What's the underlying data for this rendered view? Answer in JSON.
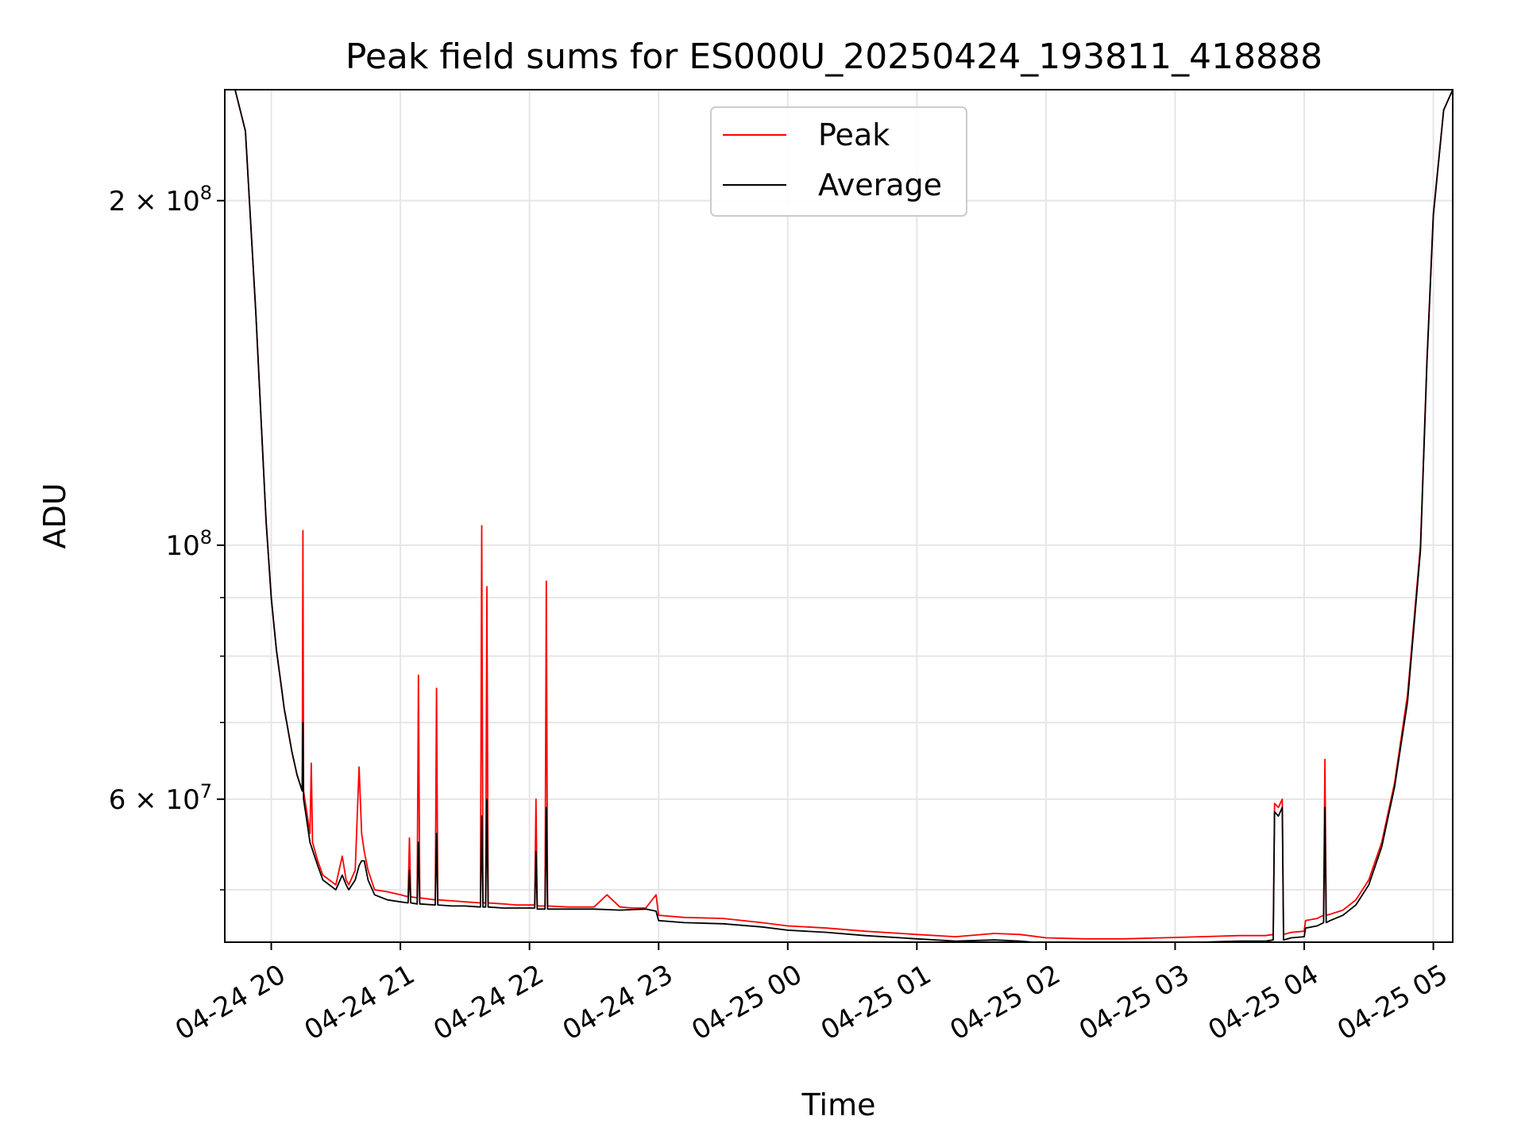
{
  "chart_data": {
    "type": "line",
    "title": "Peak field sums for ES000U_20250424_193811_418888",
    "xlabel": "Time",
    "ylabel": "ADU",
    "yscale": "log",
    "x_units": "hours since 2025-04-24 00:00",
    "xlim": [
      19.64,
      29.15
    ],
    "ylim": [
      45000000,
      250000000
    ],
    "grid": true,
    "legend_position": "top-center",
    "x_ticks": [
      {
        "value": 20,
        "label": "04-24 20"
      },
      {
        "value": 21,
        "label": "04-24 21"
      },
      {
        "value": 22,
        "label": "04-24 22"
      },
      {
        "value": 23,
        "label": "04-24 23"
      },
      {
        "value": 24,
        "label": "04-25 00"
      },
      {
        "value": 25,
        "label": "04-25 01"
      },
      {
        "value": 26,
        "label": "04-25 02"
      },
      {
        "value": 27,
        "label": "04-25 03"
      },
      {
        "value": 28,
        "label": "04-25 04"
      },
      {
        "value": 29,
        "label": "04-25 05"
      }
    ],
    "y_ticks_major": [
      {
        "value": 200000000,
        "base": "2 × 10",
        "exp": "8"
      },
      {
        "value": 100000000,
        "base": "10",
        "exp": "8"
      },
      {
        "value": 60000000,
        "base": "6 × 10",
        "exp": "7"
      }
    ],
    "y_ticks_minor": [
      50000000,
      70000000,
      80000000,
      90000000
    ],
    "series": [
      {
        "name": "Peak",
        "color": "#ff0000",
        "x": [
          19.64,
          19.72,
          19.8,
          19.88,
          19.96,
          20.0,
          20.04,
          20.08,
          20.1,
          20.12,
          20.16,
          20.2,
          20.24,
          20.245,
          20.25,
          20.28,
          20.3,
          20.31,
          20.32,
          20.36,
          20.4,
          20.45,
          20.5,
          20.55,
          20.58,
          20.6,
          20.65,
          20.68,
          20.7,
          20.72,
          20.75,
          20.8,
          20.9,
          21.0,
          21.06,
          21.07,
          21.08,
          21.13,
          21.14,
          21.15,
          21.27,
          21.28,
          21.29,
          21.4,
          21.5,
          21.62,
          21.63,
          21.64,
          21.66,
          21.67,
          21.68,
          21.8,
          21.9,
          22.0,
          22.04,
          22.05,
          22.06,
          22.12,
          22.13,
          22.14,
          22.3,
          22.5,
          22.6,
          22.7,
          22.8,
          22.9,
          22.98,
          23.0,
          23.2,
          23.5,
          23.8,
          24.0,
          24.3,
          24.6,
          25.0,
          25.3,
          25.6,
          25.8,
          26.0,
          26.3,
          26.6,
          26.9,
          27.2,
          27.5,
          27.7,
          27.76,
          27.77,
          27.8,
          27.83,
          27.84,
          27.9,
          28.0,
          28.01,
          28.1,
          28.15,
          28.16,
          28.17,
          28.2,
          28.3,
          28.4,
          28.5,
          28.6,
          28.7,
          28.8,
          28.9,
          28.95,
          29.0,
          29.08,
          29.15
        ],
        "values": [
          250000000,
          250000000,
          230000000,
          160000000,
          105000000,
          90000000,
          81000000,
          75000000,
          72000000,
          70000000,
          66000000,
          63000000,
          61000000,
          103000000,
          61000000,
          58000000,
          56000000,
          64500000,
          55000000,
          53000000,
          51500000,
          51000000,
          50500000,
          53500000,
          51000000,
          50500000,
          52000000,
          64000000,
          56000000,
          54000000,
          52000000,
          50000000,
          49800000,
          49500000,
          49300000,
          55500000,
          49300000,
          49200000,
          77000000,
          49200000,
          49000000,
          75000000,
          49000000,
          48900000,
          48800000,
          48700000,
          104000000,
          48700000,
          48700000,
          92000000,
          48700000,
          48600000,
          48500000,
          48500000,
          48500000,
          60000000,
          48400000,
          48400000,
          93000000,
          48400000,
          48300000,
          48300000,
          49500000,
          48300000,
          48200000,
          48200000,
          49500000,
          47500000,
          47300000,
          47200000,
          46800000,
          46500000,
          46300000,
          46000000,
          45700000,
          45500000,
          45800000,
          45700000,
          45400000,
          45300000,
          45300000,
          45400000,
          45500000,
          45600000,
          45600000,
          45700000,
          59500000,
          59000000,
          60000000,
          45700000,
          45900000,
          46000000,
          47000000,
          47200000,
          47500000,
          65000000,
          47500000,
          47600000,
          48000000,
          49000000,
          51000000,
          55000000,
          62000000,
          74000000,
          100000000,
          145000000,
          195000000,
          240000000,
          250000000
        ]
      },
      {
        "name": "Average",
        "color": "#000000",
        "x": [
          19.64,
          19.72,
          19.8,
          19.88,
          19.96,
          20.0,
          20.04,
          20.08,
          20.1,
          20.12,
          20.16,
          20.2,
          20.24,
          20.245,
          20.25,
          20.28,
          20.3,
          20.36,
          20.4,
          20.45,
          20.5,
          20.55,
          20.58,
          20.6,
          20.65,
          20.68,
          20.7,
          20.72,
          20.75,
          20.8,
          20.9,
          21.0,
          21.06,
          21.07,
          21.08,
          21.13,
          21.14,
          21.15,
          21.27,
          21.28,
          21.29,
          21.4,
          21.5,
          21.62,
          21.63,
          21.64,
          21.66,
          21.67,
          21.68,
          21.8,
          21.9,
          22.0,
          22.04,
          22.05,
          22.06,
          22.12,
          22.13,
          22.14,
          22.3,
          22.5,
          22.7,
          22.9,
          22.98,
          23.0,
          23.2,
          23.5,
          23.8,
          24.0,
          24.3,
          24.6,
          25.0,
          25.3,
          25.6,
          25.8,
          26.0,
          26.3,
          26.6,
          26.9,
          27.2,
          27.5,
          27.7,
          27.76,
          27.77,
          27.8,
          27.83,
          27.84,
          27.9,
          28.0,
          28.01,
          28.1,
          28.15,
          28.16,
          28.17,
          28.2,
          28.3,
          28.4,
          28.5,
          28.6,
          28.7,
          28.8,
          28.9,
          28.95,
          29.0,
          29.08,
          29.15
        ],
        "values": [
          250000000,
          250000000,
          230000000,
          160000000,
          105000000,
          90000000,
          81000000,
          75000000,
          72000000,
          70000000,
          66000000,
          63000000,
          61000000,
          70000000,
          60000000,
          57000000,
          55000000,
          52500000,
          51000000,
          50500000,
          50000000,
          51500000,
          50500000,
          50000000,
          51000000,
          52500000,
          53000000,
          53000000,
          51000000,
          49500000,
          49000000,
          48800000,
          48700000,
          52000000,
          48700000,
          48600000,
          55000000,
          48600000,
          48500000,
          56000000,
          48500000,
          48400000,
          48400000,
          48300000,
          58000000,
          48300000,
          48300000,
          60000000,
          48300000,
          48200000,
          48200000,
          48200000,
          48200000,
          54000000,
          48100000,
          48100000,
          59000000,
          48100000,
          48100000,
          48100000,
          48000000,
          48100000,
          47900000,
          47000000,
          46800000,
          46700000,
          46400000,
          46100000,
          45900000,
          45600000,
          45300000,
          45100000,
          45200000,
          45100000,
          44900000,
          44800000,
          44800000,
          44900000,
          45000000,
          45100000,
          45100000,
          45200000,
          58500000,
          58000000,
          59000000,
          45200000,
          45400000,
          45500000,
          46300000,
          46500000,
          46800000,
          59000000,
          46800000,
          47000000,
          47500000,
          48500000,
          50500000,
          54500000,
          61500000,
          73000000,
          99000000,
          144000000,
          194000000,
          240000000,
          250000000
        ]
      }
    ]
  }
}
